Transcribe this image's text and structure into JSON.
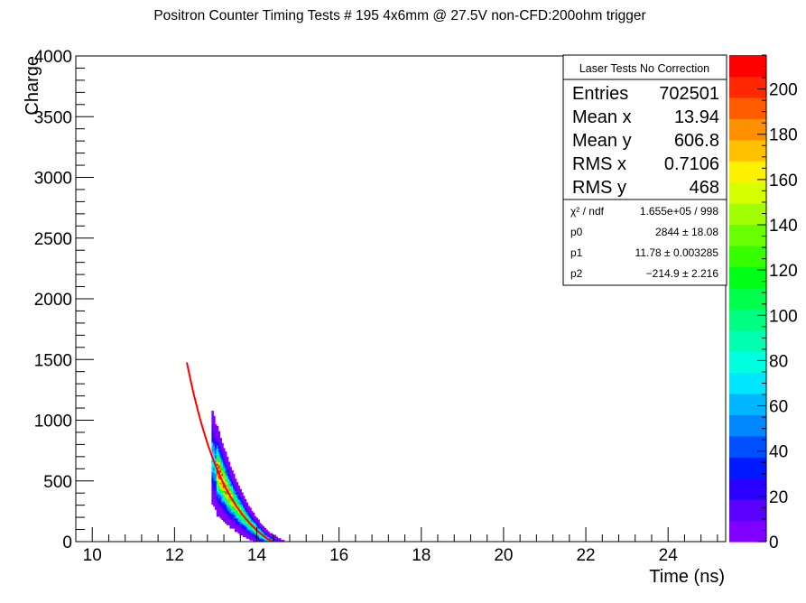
{
  "chart_data": {
    "type": "heatmap",
    "title": "Positron Counter Timing Tests # 195 4x6mm @ 27.5V non-CFD:200ohm trigger",
    "xlabel": "Time (ns)",
    "ylabel": "Charge",
    "xlim": [
      9.6,
      25.4
    ],
    "ylim": [
      0,
      4000
    ],
    "x_ticks": [
      "10",
      "12",
      "14",
      "16",
      "18",
      "20",
      "22",
      "24"
    ],
    "y_ticks": [
      "0",
      "500",
      "1000",
      "1500",
      "2000",
      "2500",
      "3000",
      "3500",
      "4000"
    ],
    "z_range": [
      0,
      215
    ],
    "z_ticks": [
      "0",
      "20",
      "40",
      "60",
      "80",
      "100",
      "120",
      "140",
      "160",
      "180",
      "200"
    ],
    "palette": [
      "#7f00ff",
      "#5a00ff",
      "#2a00ff",
      "#0019ff",
      "#0050ff",
      "#0086ff",
      "#00b6ff",
      "#00e6ff",
      "#00ffe0",
      "#00ffb0",
      "#00ff80",
      "#00ff4c",
      "#00ff16",
      "#36ff00",
      "#6aff00",
      "#a0ff00",
      "#d6ff00",
      "#fff200",
      "#ffc000",
      "#ff9000",
      "#ff5c00",
      "#ff2800",
      "#ff0000"
    ],
    "fit_color": "#ff0000",
    "fit": {
      "model": "p0*exp(-(x-p1)) + p2",
      "p0": 2844,
      "p1": 11.78,
      "p2": -214.9
    },
    "stats": {
      "title": "Laser Tests No Correction",
      "rows": [
        {
          "label": "Entries",
          "value": "702501"
        },
        {
          "label": "Mean x",
          "value": "13.94"
        },
        {
          "label": "Mean y",
          "value": "606.8"
        },
        {
          "label": "RMS x",
          "value": "0.7106"
        },
        {
          "label": "RMS y",
          "value": "468"
        }
      ],
      "fit_rows": [
        {
          "label": "χ² / ndf",
          "value": "1.655e+05 / 998"
        },
        {
          "label": "p0",
          "value": "2844 ± 18.08"
        },
        {
          "label": "p1",
          "value": "11.78 ± 0.003285"
        },
        {
          "label": "p2",
          "value": "−214.9 ± 2.216"
        }
      ]
    }
  }
}
